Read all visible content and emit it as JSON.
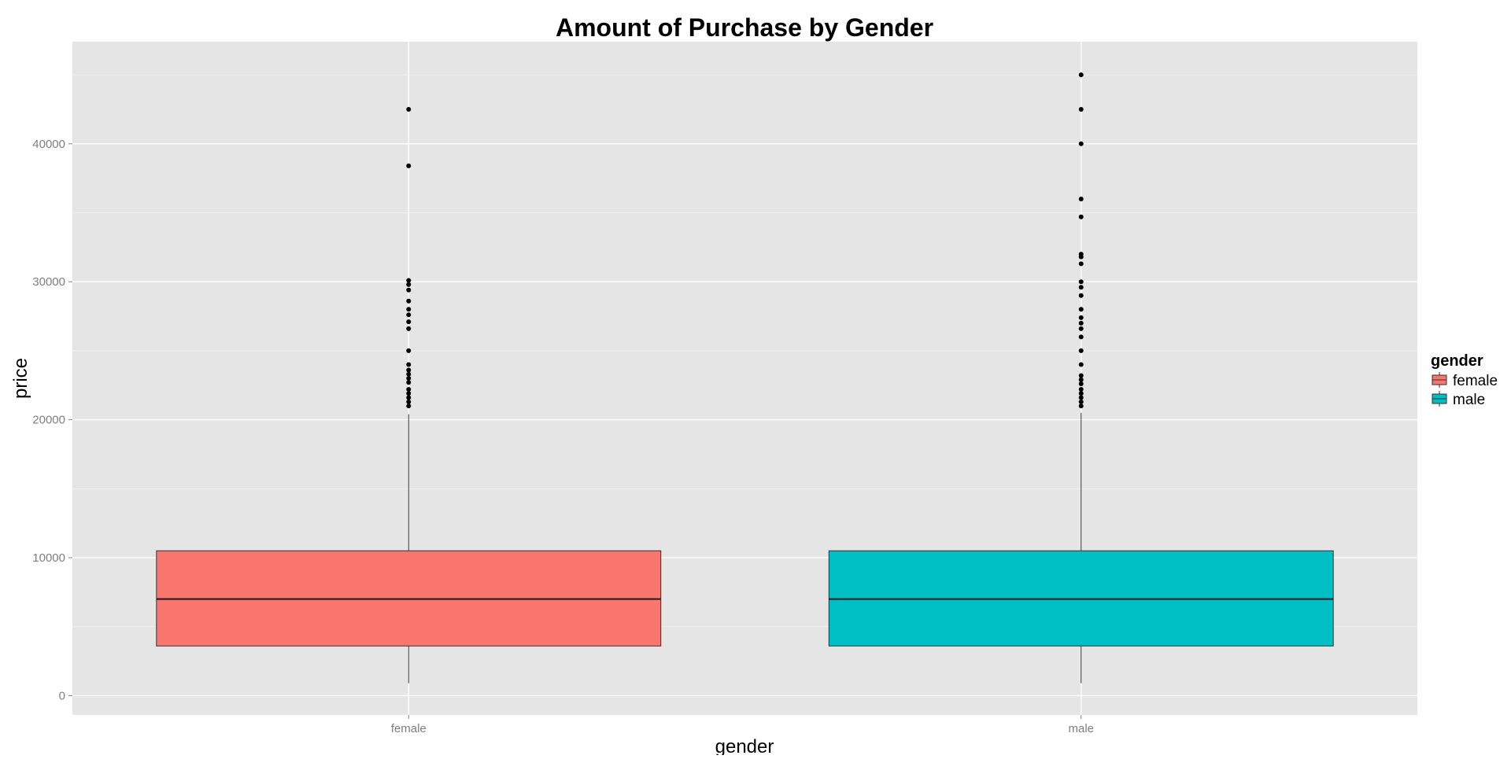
{
  "chart_data": {
    "type": "boxplot",
    "title": "Amount of Purchase by Gender",
    "xlabel": "gender",
    "ylabel": "price",
    "categories": [
      "female",
      "male"
    ],
    "ylim": [
      -1400,
      47400
    ],
    "yticks": [
      0,
      10000,
      20000,
      30000,
      40000
    ],
    "y_tick_labels": [
      "0",
      "10000",
      "20000",
      "30000",
      "40000"
    ],
    "grid": true,
    "legend": {
      "title": "gender",
      "position": "right",
      "entries": [
        "female",
        "male"
      ]
    },
    "series": [
      {
        "name": "female",
        "color": "#F8766D",
        "whisker_low": 900,
        "q1": 3600,
        "median": 7000,
        "q3": 10500,
        "whisker_high": 20400,
        "outliers": [
          21000,
          21300,
          21600,
          21900,
          22200,
          22700,
          23000,
          23300,
          23600,
          24000,
          25000,
          26600,
          27100,
          27600,
          28000,
          28600,
          29400,
          29800,
          30100,
          38400,
          42500
        ]
      },
      {
        "name": "male",
        "color": "#00BFC4",
        "whisker_low": 900,
        "q1": 3600,
        "median": 7000,
        "q3": 10500,
        "whisker_high": 20500,
        "outliers": [
          21000,
          21300,
          21600,
          21900,
          22200,
          22600,
          22900,
          23200,
          24000,
          25000,
          26000,
          26600,
          27000,
          27400,
          28000,
          29000,
          29600,
          30000,
          31300,
          31800,
          32000,
          34700,
          36000,
          40000,
          42500,
          45000
        ]
      }
    ]
  }
}
